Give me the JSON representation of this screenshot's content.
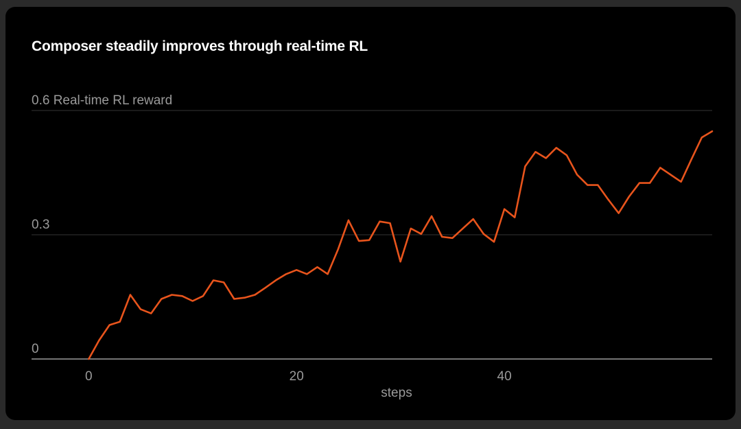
{
  "chart_data": {
    "type": "line",
    "title": "Composer steadily improves through real-time RL",
    "ylabel": "Real-time RL reward",
    "xlabel": "steps",
    "ylim": [
      0,
      0.6
    ],
    "xlim": [
      -5.5,
      60
    ],
    "y_ticks": [
      {
        "value": 0,
        "label": "0"
      },
      {
        "value": 0.3,
        "label": "0.3"
      },
      {
        "value": 0.6,
        "label": "0.6 Real-time RL reward"
      }
    ],
    "x_ticks": [
      {
        "value": 0,
        "label": "0"
      },
      {
        "value": 20,
        "label": "20"
      },
      {
        "value": 40,
        "label": "40"
      }
    ],
    "grid": true,
    "colors": {
      "line": "#e8541c",
      "grid": "#333333",
      "axis": "#bbbbbb"
    },
    "series": [
      {
        "name": "Real-time RL reward",
        "x": [
          0,
          1,
          2,
          3,
          4,
          5,
          6,
          7,
          8,
          9,
          10,
          11,
          12,
          13,
          14,
          15,
          16,
          17,
          18,
          19,
          20,
          21,
          22,
          23,
          24,
          25,
          26,
          27,
          28,
          29,
          30,
          31,
          32,
          33,
          34,
          35,
          36,
          37,
          38,
          39,
          40,
          41,
          42,
          43,
          44,
          45,
          46,
          47,
          48,
          49,
          50,
          51,
          52,
          53,
          54,
          55,
          56,
          57,
          58,
          59,
          60
        ],
        "values": [
          0.0,
          0.045,
          0.082,
          0.09,
          0.155,
          0.12,
          0.11,
          0.145,
          0.155,
          0.152,
          0.14,
          0.152,
          0.19,
          0.185,
          0.145,
          0.148,
          0.155,
          0.172,
          0.19,
          0.205,
          0.215,
          0.205,
          0.222,
          0.205,
          0.265,
          0.335,
          0.285,
          0.287,
          0.332,
          0.328,
          0.235,
          0.315,
          0.302,
          0.345,
          0.295,
          0.292,
          0.315,
          0.338,
          0.302,
          0.283,
          0.362,
          0.342,
          0.465,
          0.5,
          0.485,
          0.51,
          0.492,
          0.445,
          0.42,
          0.42,
          0.385,
          0.352,
          0.392,
          0.425,
          0.425,
          0.462,
          0.445,
          0.428,
          0.482,
          0.535,
          0.55
        ]
      }
    ]
  }
}
